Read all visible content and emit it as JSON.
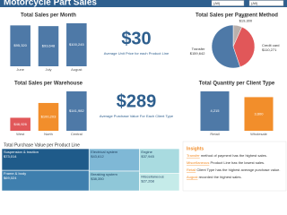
{
  "header": {
    "title": "Motorcycle Part Sales",
    "filters": [
      "(All)",
      "(All)"
    ]
  },
  "chart_data": [
    {
      "type": "bar",
      "title": "Total Sales per Month",
      "categories": [
        "June",
        "July",
        "August"
      ],
      "values": [
        95320,
        93648,
        100245
      ],
      "value_labels": [
        "$95,320",
        "$93,648",
        "$100,245"
      ],
      "colors": [
        "#4e79a7",
        "#4e79a7",
        "#4e79a7"
      ]
    },
    {
      "type": "pie",
      "title": "Total Sales per Payment Method",
      "categories": [
        "Cash",
        "Credit card",
        "Transfer"
      ],
      "values": [
        19300,
        110271,
        159642
      ],
      "value_labels": [
        "$19,300",
        "$110,271",
        "$159,642"
      ],
      "colors": [
        "#bab0ac",
        "#e15759",
        "#4e79a7"
      ]
    },
    {
      "type": "bar",
      "title": "Total Sales per Warehouse",
      "categories": [
        "West",
        "North",
        "Central"
      ],
      "values": [
        46926,
        100203,
        141982
      ],
      "value_labels": [
        "$46,926",
        "$100,203",
        "$141,982"
      ],
      "colors": [
        "#e15759",
        "#f28e2b",
        "#4e79a7"
      ]
    },
    {
      "type": "bar",
      "title": "Total Quantity per Client Type",
      "categories": [
        "Retail",
        "Wholesale"
      ],
      "values": [
        4215,
        3600
      ],
      "value_labels": [
        "4,215",
        "3,600"
      ],
      "colors": [
        "#4e79a7",
        "#f28e2b"
      ]
    },
    {
      "type": "treemap",
      "title": "Total Purchase Value per Product Line",
      "categories": [
        "Suspension & traction",
        "Frame & body",
        "Electrical system",
        "Breaking system",
        "Engine",
        "Miscellaneous"
      ],
      "values": [
        73014,
        69024,
        43612,
        38350,
        37945,
        27268
      ],
      "value_labels": [
        "$73,014",
        "$69,024",
        "$43,612",
        "$38,350",
        "$37,945",
        "$27,268"
      ],
      "colors": [
        "#1f5b8a",
        "#3f7fae",
        "#7fb8d6",
        "#8fc7d8",
        "#a9dbe0",
        "#c5ebe9"
      ]
    }
  ],
  "kpis": [
    {
      "value": "$30",
      "label": "Average Unit Price for each Product Line"
    },
    {
      "value": "$289",
      "label": "Average Purchase Value For Each Client Type"
    }
  ],
  "insights": {
    "title": "Insights",
    "lines": [
      {
        "highlight": "Transfer",
        "text": " method of payment has the highest sales."
      },
      {
        "highlight": "Miscellaneous",
        "text": " Product Line has the lowest sales."
      },
      {
        "highlight": "Retail",
        "text": " Client Type has the highest average purchase value."
      },
      {
        "highlight": "August",
        "text": " recorded the highest sales."
      }
    ]
  }
}
